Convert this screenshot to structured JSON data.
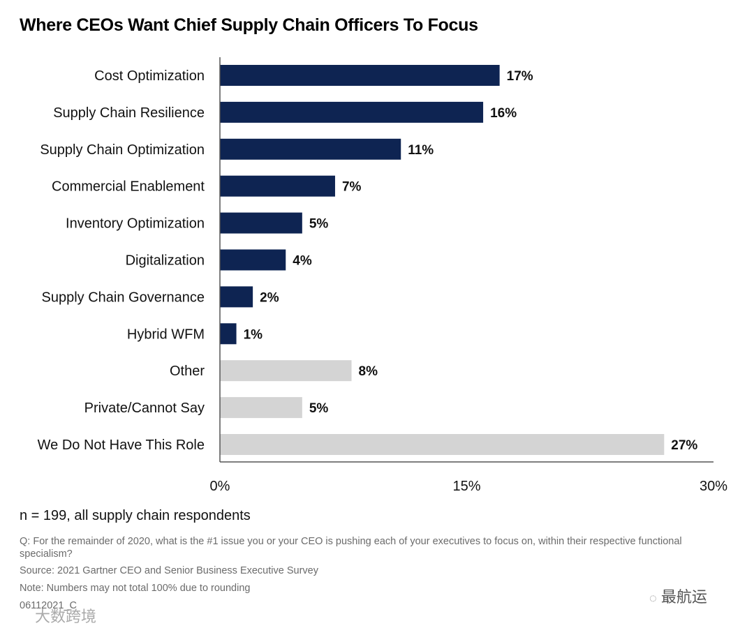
{
  "chart_data": {
    "type": "bar",
    "orientation": "horizontal",
    "title": "Where CEOs Want Chief Supply Chain Officers To Focus",
    "categories": [
      "Cost Optimization",
      "Supply Chain Resilience",
      "Supply Chain Optimization",
      "Commercial Enablement",
      "Inventory Optimization",
      "Digitalization",
      "Supply Chain Governance",
      "Hybrid WFM",
      "Other",
      "Private/Cannot Say",
      "We Do Not Have This Role"
    ],
    "values": [
      17,
      16,
      11,
      7,
      5,
      4,
      2,
      1,
      8,
      5,
      27
    ],
    "data_labels": [
      "17%",
      "16%",
      "11%",
      "7%",
      "5%",
      "4%",
      "2%",
      "1%",
      "8%",
      "5%",
      "27%"
    ],
    "bar_groups": [
      "focus",
      "focus",
      "focus",
      "focus",
      "focus",
      "focus",
      "focus",
      "focus",
      "other",
      "other",
      "other"
    ],
    "xlim": [
      0,
      30
    ],
    "x_ticks": [
      0,
      15,
      30
    ],
    "x_tick_labels": [
      "0%",
      "15%",
      "30%"
    ],
    "grid": false,
    "colors": {
      "focus": "#0e2452",
      "other": "#d4d4d4"
    }
  },
  "notes": {
    "n": "n = 199, all supply chain respondents",
    "question": "Q: For the remainder of 2020, what is the #1 issue you or your CEO is pushing each of your executives to focus on, within their respective functional specialism?",
    "source": "Source: 2021 Gartner CEO and Senior Business Executive Survey",
    "note": "Note: Numbers may not total 100% due to rounding",
    "code": "06112021_C"
  },
  "watermarks": {
    "right": "最航运",
    "left": "大数跨境"
  }
}
